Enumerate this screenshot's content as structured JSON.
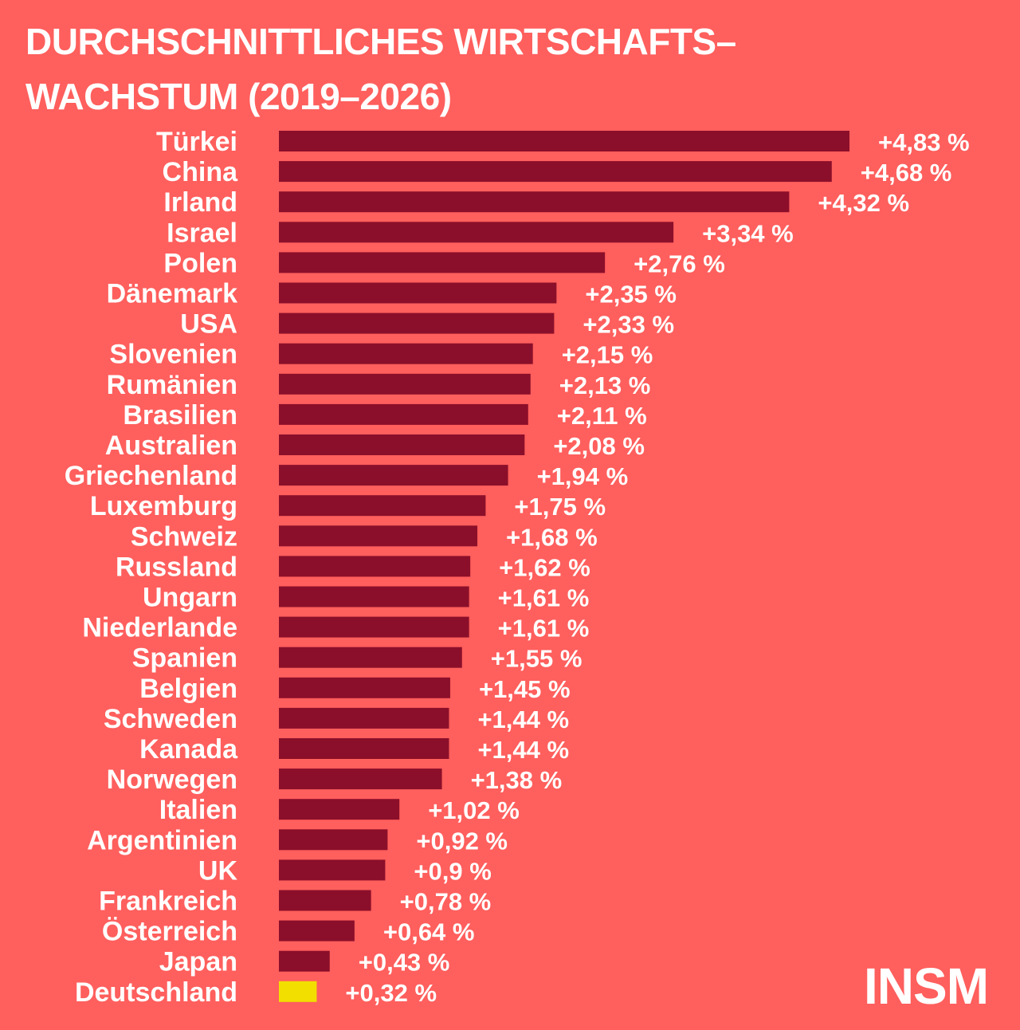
{
  "title_lines": [
    "DURCHSCHNITTLICHES WIRTSCHAFTS–",
    "WACHSTUM (2019–2026)"
  ],
  "logo": "INSM",
  "colors": {
    "background": "#FF5F5D",
    "bar": "#8B0F2A",
    "highlight": "#F2DF00",
    "text": "#FFFFFF"
  },
  "chart_data": {
    "type": "bar",
    "orientation": "horizontal",
    "title": "DURCHSCHNITTLICHES WIRTSCHAFTS–WACHSTUM (2019–2026)",
    "xlim": [
      0,
      4.83
    ],
    "grid": false,
    "highlight_category": "Deutschland",
    "categories": [
      "Türkei",
      "China",
      "Irland",
      "Israel",
      "Polen",
      "Dänemark",
      "USA",
      "Slovenien",
      "Rumänien",
      "Brasilien",
      "Australien",
      "Griechenland",
      "Luxemburg",
      "Schweiz",
      "Russland",
      "Ungarn",
      "Niederlande",
      "Spanien",
      "Belgien",
      "Schweden",
      "Kanada",
      "Norwegen",
      "Italien",
      "Argentinien",
      "UK",
      "Frankreich",
      "Österreich",
      "Japan",
      "Deutschland"
    ],
    "values": [
      4.83,
      4.68,
      4.32,
      3.34,
      2.76,
      2.35,
      2.33,
      2.15,
      2.13,
      2.11,
      2.08,
      1.94,
      1.75,
      1.68,
      1.62,
      1.61,
      1.61,
      1.55,
      1.45,
      1.44,
      1.44,
      1.38,
      1.02,
      0.92,
      0.9,
      0.78,
      0.64,
      0.43,
      0.32
    ],
    "labels": [
      "+4,83 %",
      "+4,68 %",
      "+4,32 %",
      "+3,34 %",
      "+2,76 %",
      "+2,35 %",
      "+2,33 %",
      "+2,15 %",
      "+2,13 %",
      "+2,11 %",
      "+2,08 %",
      "+1,94 %",
      "+1,75 %",
      "+1,68 %",
      "+1,62 %",
      "+1,61 %",
      "+1,61 %",
      "+1,55 %",
      "+1,45 %",
      "+1,44 %",
      "+1,44 %",
      "+1,38 %",
      "+1,02 %",
      "+0,92 %",
      "+0,9 %",
      "+0,78 %",
      "+0,64 %",
      "+0,43 %",
      "+0,32 %"
    ]
  }
}
